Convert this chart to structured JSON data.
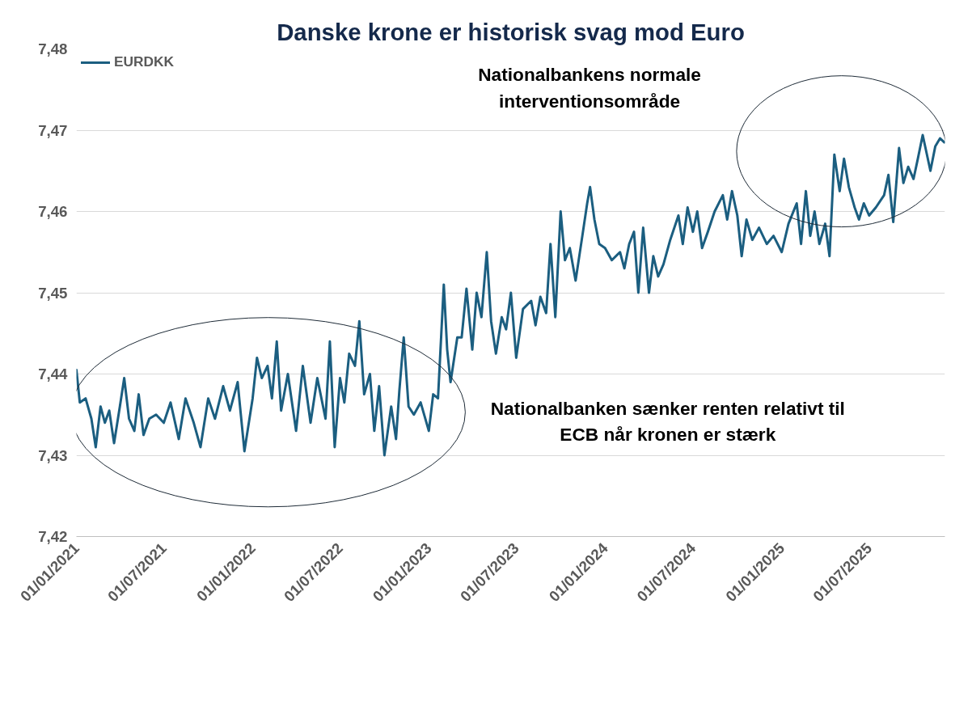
{
  "chart_data": {
    "type": "line",
    "title": "Danske krone er historisk svag mod Euro",
    "annotations": [
      "Nationalbankens normale\ninterventionsområde",
      "Nationalbanken sænker renten relativt til\nECB når kronen er stærk"
    ],
    "x": [
      "2021-01-01",
      "2021-01-08",
      "2021-01-20",
      "2021-02-01",
      "2021-02-10",
      "2021-02-20",
      "2021-03-01",
      "2021-03-10",
      "2021-03-20",
      "2021-04-01",
      "2021-04-10",
      "2021-04-20",
      "2021-05-01",
      "2021-05-10",
      "2021-05-20",
      "2021-06-01",
      "2021-06-15",
      "2021-07-01",
      "2021-07-15",
      "2021-08-01",
      "2021-08-15",
      "2021-09-01",
      "2021-09-15",
      "2021-10-01",
      "2021-10-15",
      "2021-11-01",
      "2021-11-15",
      "2021-12-01",
      "2021-12-15",
      "2022-01-01",
      "2022-01-10",
      "2022-01-20",
      "2022-02-01",
      "2022-02-10",
      "2022-02-20",
      "2022-03-01",
      "2022-03-15",
      "2022-04-01",
      "2022-04-15",
      "2022-05-01",
      "2022-05-15",
      "2022-06-01",
      "2022-06-10",
      "2022-06-20",
      "2022-07-01",
      "2022-07-10",
      "2022-07-20",
      "2022-08-01",
      "2022-08-10",
      "2022-08-20",
      "2022-09-01",
      "2022-09-10",
      "2022-09-20",
      "2022-10-01",
      "2022-10-15",
      "2022-10-25",
      "2022-11-01",
      "2022-11-10",
      "2022-11-20",
      "2022-12-01",
      "2022-12-15",
      "2023-01-01",
      "2023-01-10",
      "2023-01-20",
      "2023-02-01",
      "2023-02-08",
      "2023-02-15",
      "2023-03-01",
      "2023-03-10",
      "2023-03-20",
      "2023-04-01",
      "2023-04-10",
      "2023-04-20",
      "2023-05-01",
      "2023-05-10",
      "2023-05-20",
      "2023-06-01",
      "2023-06-10",
      "2023-06-20",
      "2023-07-01",
      "2023-07-15",
      "2023-08-01",
      "2023-08-10",
      "2023-08-20",
      "2023-09-01",
      "2023-09-10",
      "2023-09-20",
      "2023-10-01",
      "2023-10-10",
      "2023-10-20",
      "2023-11-01",
      "2023-11-15",
      "2023-11-25",
      "2023-12-01",
      "2023-12-10",
      "2023-12-20",
      "2024-01-01",
      "2024-01-15",
      "2024-02-01",
      "2024-02-10",
      "2024-02-20",
      "2024-03-01",
      "2024-03-10",
      "2024-03-20",
      "2024-04-01",
      "2024-04-10",
      "2024-04-20",
      "2024-05-01",
      "2024-05-15",
      "2024-06-01",
      "2024-06-10",
      "2024-06-20",
      "2024-07-01",
      "2024-07-10",
      "2024-07-20",
      "2024-08-01",
      "2024-08-15",
      "2024-09-01",
      "2024-09-10",
      "2024-09-20",
      "2024-10-01",
      "2024-10-10",
      "2024-10-20",
      "2024-11-01",
      "2024-11-15",
      "2024-12-01",
      "2024-12-15",
      "2025-01-01",
      "2025-01-15",
      "2025-02-01",
      "2025-02-10",
      "2025-02-20",
      "2025-03-01",
      "2025-03-10",
      "2025-03-20",
      "2025-04-01",
      "2025-04-10",
      "2025-04-20",
      "2025-05-01",
      "2025-05-10",
      "2025-05-20",
      "2025-06-01",
      "2025-06-10",
      "2025-06-20",
      "2025-07-01",
      "2025-07-15",
      "2025-08-01",
      "2025-08-10",
      "2025-08-20",
      "2025-09-01",
      "2025-09-10",
      "2025-09-20",
      "2025-10-01",
      "2025-10-10",
      "2025-10-20",
      "2025-11-05",
      "2025-11-15",
      "2025-11-25",
      "2025-12-04"
    ],
    "series": [
      {
        "name": "EURDKK",
        "color": "#1b5e80",
        "values": [
          7.4405,
          7.4365,
          7.437,
          7.4345,
          7.431,
          7.436,
          7.434,
          7.4355,
          7.4315,
          7.436,
          7.4395,
          7.4345,
          7.433,
          7.4375,
          7.4325,
          7.4345,
          7.435,
          7.434,
          7.4365,
          7.432,
          7.437,
          7.434,
          7.431,
          7.437,
          7.4345,
          7.4385,
          7.4355,
          7.439,
          7.4305,
          7.437,
          7.442,
          7.4395,
          7.441,
          7.437,
          7.444,
          7.4355,
          7.44,
          7.433,
          7.441,
          7.434,
          7.4395,
          7.4345,
          7.444,
          7.431,
          7.4395,
          7.4365,
          7.4425,
          7.441,
          7.4465,
          7.4375,
          7.44,
          7.433,
          7.4385,
          7.43,
          7.436,
          7.432,
          7.438,
          7.4445,
          7.436,
          7.435,
          7.4365,
          7.433,
          7.4375,
          7.437,
          7.451,
          7.443,
          7.439,
          7.4445,
          7.4445,
          7.4505,
          7.443,
          7.45,
          7.447,
          7.455,
          7.4465,
          7.4425,
          7.447,
          7.4455,
          7.45,
          7.442,
          7.448,
          7.449,
          7.446,
          7.4495,
          7.4475,
          7.456,
          7.447,
          7.46,
          7.454,
          7.4555,
          7.4515,
          7.457,
          7.461,
          7.463,
          7.459,
          7.456,
          7.4555,
          7.454,
          7.455,
          7.453,
          7.456,
          7.4575,
          7.45,
          7.458,
          7.45,
          7.4545,
          7.452,
          7.4535,
          7.4565,
          7.4595,
          7.456,
          7.4605,
          7.4575,
          7.46,
          7.4555,
          7.4575,
          7.46,
          7.462,
          7.459,
          7.4625,
          7.4595,
          7.4545,
          7.459,
          7.4565,
          7.458,
          7.456,
          7.457,
          7.455,
          7.4585,
          7.461,
          7.456,
          7.4625,
          7.457,
          7.46,
          7.456,
          7.4585,
          7.4545,
          7.467,
          7.4625,
          7.4665,
          7.463,
          7.4605,
          7.459,
          7.461,
          7.4595,
          7.4605,
          7.462,
          7.4645,
          7.4587,
          7.4678,
          7.4635,
          7.4655,
          7.464,
          7.4665,
          7.4694,
          7.465,
          7.468,
          7.469,
          7.4685
        ]
      }
    ],
    "xlim": [
      "2021-01-01",
      "2025-12-05"
    ],
    "xticks": [
      {
        "value": "2021-01-01",
        "label": "01/01/2021"
      },
      {
        "value": "2021-07-01",
        "label": "01/07/2021"
      },
      {
        "value": "2022-01-01",
        "label": "01/01/2022"
      },
      {
        "value": "2022-07-01",
        "label": "01/07/2022"
      },
      {
        "value": "2023-01-01",
        "label": "01/01/2023"
      },
      {
        "value": "2023-07-01",
        "label": "01/07/2023"
      },
      {
        "value": "2024-01-01",
        "label": "01/01/2024"
      },
      {
        "value": "2024-07-01",
        "label": "01/07/2024"
      },
      {
        "value": "2025-01-01",
        "label": "01/01/2025"
      },
      {
        "value": "2025-07-01",
        "label": "01/07/2025"
      }
    ],
    "ylim": [
      7.42,
      7.48
    ],
    "yticks": [
      {
        "value": 7.42,
        "label": "7,42"
      },
      {
        "value": 7.43,
        "label": "7,43"
      },
      {
        "value": 7.44,
        "label": "7,44"
      },
      {
        "value": 7.45,
        "label": "7,45"
      },
      {
        "value": 7.46,
        "label": "7,46"
      },
      {
        "value": 7.47,
        "label": "7,47"
      },
      {
        "value": 7.48,
        "label": "7,48"
      }
    ],
    "grid": "y",
    "legend": "top left",
    "marker": "none",
    "line_style": "solid"
  }
}
